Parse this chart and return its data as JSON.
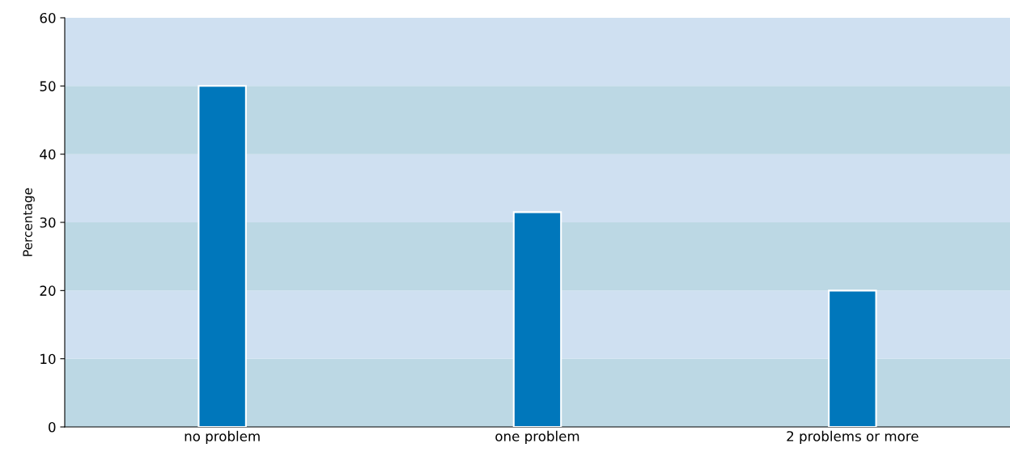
{
  "chart_data": {
    "type": "bar",
    "ylabel": "Percentage",
    "categories": [
      "no problem",
      "one problem",
      "2 problems or more"
    ],
    "values": [
      50,
      31.5,
      20
    ],
    "color": "#0077bb",
    "ylim": [
      0,
      60
    ],
    "yticks": [
      0,
      10,
      20,
      30,
      40,
      50,
      60
    ],
    "grid": false,
    "bands": [
      {
        "axis": "y",
        "from": 0,
        "to": 10,
        "color": "#bcd8e4"
      },
      {
        "axis": "y",
        "from": 10,
        "to": 20,
        "color": "#cfe0f1"
      },
      {
        "axis": "y",
        "from": 20,
        "to": 30,
        "color": "#bcd8e4"
      },
      {
        "axis": "y",
        "from": 30,
        "to": 40,
        "color": "#cfe0f1"
      },
      {
        "axis": "y",
        "from": 40,
        "to": 50,
        "color": "#bcd8e4"
      },
      {
        "axis": "y",
        "from": 50,
        "to": 60,
        "color": "#cfe0f1"
      }
    ]
  }
}
